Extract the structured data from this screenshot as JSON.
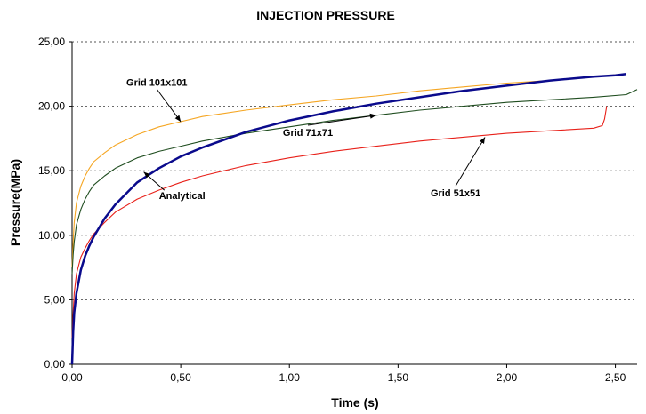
{
  "chart_data": {
    "type": "line",
    "title": "INJECTION PRESSURE",
    "xlabel": "Time (s)",
    "ylabel": "Pressure(MPa)",
    "xlim": [
      0,
      2.6
    ],
    "ylim": [
      0,
      25
    ],
    "x_ticks": [
      "0,00",
      "0,50",
      "1,00",
      "1,50",
      "2,00",
      "2,50"
    ],
    "x_tick_values": [
      0,
      0.5,
      1.0,
      1.5,
      2.0,
      2.5
    ],
    "y_ticks": [
      "0,00",
      "5,00",
      "10,00",
      "15,00",
      "20,00",
      "25,00"
    ],
    "y_tick_values": [
      0,
      5,
      10,
      15,
      20,
      25
    ],
    "grid": "horizontal-dotted",
    "series": [
      {
        "color": "#f5a623",
        "x": [
          0,
          0.005,
          0.01,
          0.02,
          0.04,
          0.06,
          0.08,
          0.1,
          0.15,
          0.2,
          0.3,
          0.4,
          0.5,
          0.6,
          0.8,
          1.0,
          1.2,
          1.4,
          1.6,
          1.8,
          2.0,
          2.2,
          2.4,
          2.55
        ],
        "y": [
          7.5,
          9.5,
          11.0,
          12.5,
          13.8,
          14.6,
          15.2,
          15.7,
          16.4,
          17.0,
          17.8,
          18.4,
          18.8,
          19.2,
          19.7,
          20.1,
          20.5,
          20.8,
          21.2,
          21.5,
          21.8,
          22.0,
          22.3,
          22.5
        ]
      },
      {
        "color": "#1f4d1f",
        "x": [
          0,
          0.005,
          0.01,
          0.02,
          0.04,
          0.06,
          0.08,
          0.1,
          0.15,
          0.2,
          0.3,
          0.4,
          0.5,
          0.6,
          0.8,
          1.0,
          1.2,
          1.4,
          1.6,
          1.8,
          2.0,
          2.2,
          2.4,
          2.55,
          2.6
        ],
        "y": [
          7.0,
          8.5,
          9.5,
          10.8,
          12.0,
          12.8,
          13.4,
          13.9,
          14.6,
          15.2,
          16.0,
          16.5,
          16.9,
          17.3,
          17.9,
          18.4,
          18.9,
          19.3,
          19.7,
          20.0,
          20.3,
          20.5,
          20.7,
          20.9,
          21.3
        ]
      },
      {
        "color": "#e8211a",
        "x": [
          0,
          0.005,
          0.01,
          0.02,
          0.04,
          0.06,
          0.08,
          0.1,
          0.15,
          0.2,
          0.3,
          0.4,
          0.5,
          0.6,
          0.8,
          1.0,
          1.2,
          1.4,
          1.6,
          1.8,
          2.0,
          2.2,
          2.4,
          2.44,
          2.45,
          2.46
        ],
        "y": [
          2.0,
          4.0,
          5.5,
          7.0,
          8.3,
          9.0,
          9.6,
          10.1,
          11.0,
          11.8,
          12.8,
          13.5,
          14.1,
          14.6,
          15.4,
          16.0,
          16.5,
          16.9,
          17.3,
          17.6,
          17.9,
          18.1,
          18.3,
          18.5,
          19.0,
          20.0
        ]
      },
      {
        "color": "#0a0a8c",
        "x": [
          0,
          0.005,
          0.01,
          0.02,
          0.04,
          0.06,
          0.08,
          0.1,
          0.15,
          0.2,
          0.3,
          0.4,
          0.5,
          0.6,
          0.8,
          1.0,
          1.2,
          1.4,
          1.6,
          1.8,
          2.0,
          2.2,
          2.4,
          2.5,
          2.55
        ],
        "y": [
          0,
          2.5,
          4.0,
          5.5,
          7.3,
          8.4,
          9.2,
          9.9,
          11.3,
          12.4,
          14.1,
          15.2,
          16.1,
          16.8,
          18.0,
          18.9,
          19.6,
          20.2,
          20.7,
          21.2,
          21.6,
          22.0,
          22.3,
          22.4,
          22.5
        ]
      }
    ],
    "annotations": [
      {
        "text": "Grid 101x101",
        "x": 0.25,
        "y": 21.6,
        "target_x": 0.5,
        "target_y": 18.8
      },
      {
        "text": "Grid 71x71",
        "x": 0.97,
        "y": 17.7,
        "target_x": 1.4,
        "target_y": 19.3
      },
      {
        "text": "Grid 51x51",
        "x": 1.65,
        "y": 13.0,
        "target_x": 1.9,
        "target_y": 17.6
      },
      {
        "text": "Analytical",
        "x": 0.4,
        "y": 12.8,
        "target_x": 0.33,
        "target_y": 14.9
      }
    ]
  }
}
